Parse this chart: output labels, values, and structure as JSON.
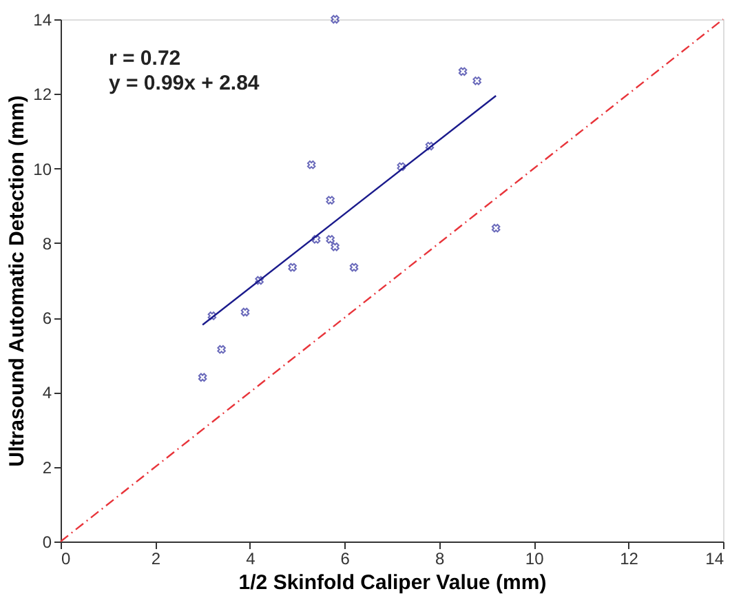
{
  "chart_data": {
    "type": "scatter",
    "xlabel": "1/2 Skinfold Caliper Value (mm)",
    "ylabel": "Ultrasound Automatic Detection (mm)",
    "annotations": [
      "r = 0.72",
      "y = 0.99x + 2.84"
    ],
    "xlim": [
      0,
      14
    ],
    "ylim": [
      0,
      14
    ],
    "xticks": [
      0,
      2,
      4,
      6,
      8,
      10,
      12,
      14
    ],
    "yticks": [
      0,
      2,
      4,
      6,
      8,
      10,
      12,
      14
    ],
    "grid": false,
    "series": [
      {
        "type": "scatter",
        "color": "#2b2b9e",
        "marker": "cross",
        "x": [
          3.0,
          3.2,
          3.4,
          3.9,
          4.2,
          4.9,
          5.3,
          5.4,
          5.7,
          5.7,
          5.8,
          5.8,
          6.2,
          7.2,
          7.8,
          8.5,
          8.8,
          9.2
        ],
        "values": [
          4.4,
          6.05,
          5.15,
          6.15,
          7.0,
          7.35,
          10.1,
          8.1,
          9.15,
          8.1,
          7.9,
          14.0,
          7.35,
          10.05,
          10.6,
          12.6,
          12.35,
          8.4
        ]
      },
      {
        "type": "line",
        "color": "#1a1a8c",
        "line_style": "solid",
        "x": [
          3.0,
          9.2
        ],
        "values": [
          5.81,
          11.95
        ]
      },
      {
        "type": "line",
        "color": "#e8343a",
        "line_style": "dashed",
        "x": [
          0,
          14
        ],
        "values": [
          0,
          14
        ]
      }
    ]
  }
}
